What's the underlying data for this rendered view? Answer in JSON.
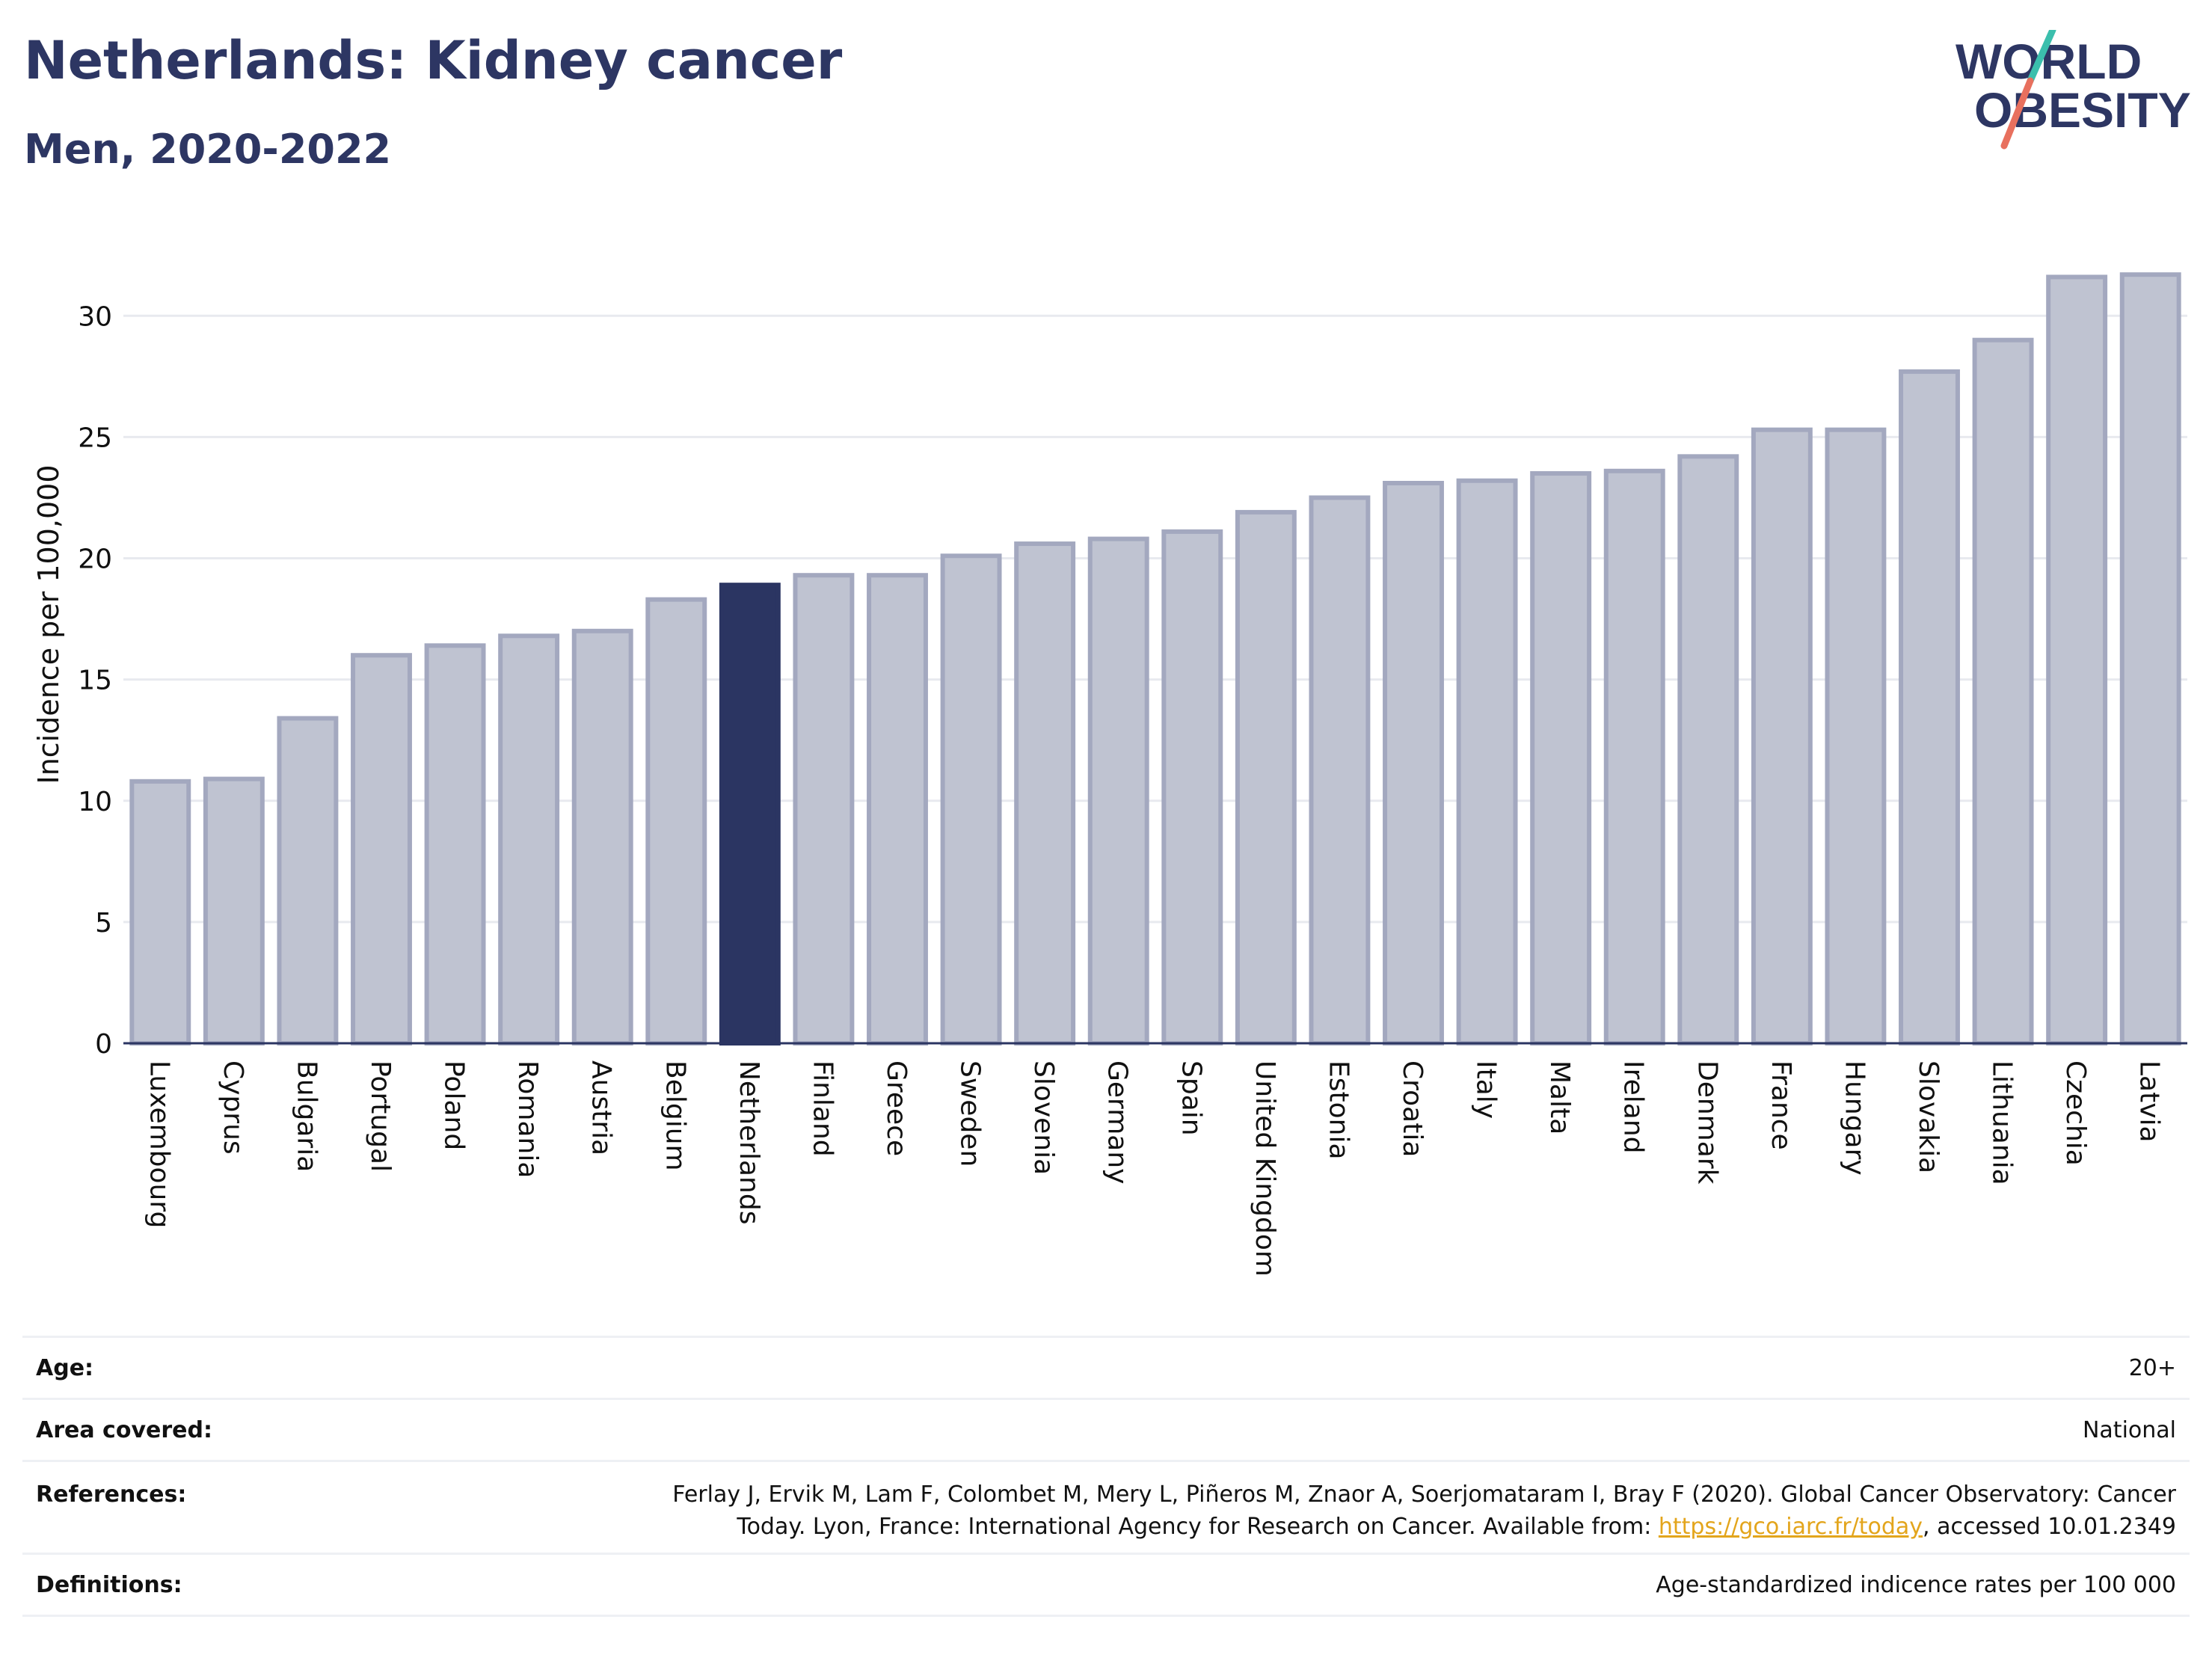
{
  "header": {
    "title": "Netherlands: Kidney cancer",
    "subtitle": "Men, 2020-2022"
  },
  "logo": {
    "line1": "WORLD",
    "line2": "OBESITY"
  },
  "chart_data": {
    "type": "bar",
    "title": "Netherlands: Kidney cancer",
    "subtitle": "Men, 2020-2022",
    "xlabel": "",
    "ylabel": "Incidence per 100,000",
    "ylim": [
      0,
      33
    ],
    "yticks": [
      0,
      5,
      10,
      15,
      20,
      25,
      30
    ],
    "grid": true,
    "highlight": "Netherlands",
    "colors": {
      "bar": "#bfc3d1",
      "bar_border": "#a3a8bf",
      "highlight": "#2b3562",
      "grid": "#e8eaef",
      "axis": "#2b3562"
    },
    "categories": [
      "Luxembourg",
      "Cyprus",
      "Bulgaria",
      "Portugal",
      "Poland",
      "Romania",
      "Austria",
      "Belgium",
      "Netherlands",
      "Finland",
      "Greece",
      "Sweden",
      "Slovenia",
      "Germany",
      "Spain",
      "United Kingdom",
      "Estonia",
      "Croatia",
      "Italy",
      "Malta",
      "Ireland",
      "Denmark",
      "France",
      "Hungary",
      "Slovakia",
      "Lithuania",
      "Czechia",
      "Latvia"
    ],
    "values": [
      10.8,
      10.9,
      13.4,
      16.0,
      16.4,
      16.8,
      17.0,
      18.3,
      18.9,
      19.3,
      19.3,
      20.1,
      20.6,
      20.8,
      21.1,
      21.9,
      22.5,
      23.1,
      23.2,
      23.5,
      23.6,
      24.2,
      25.3,
      25.3,
      27.7,
      29.0,
      31.6,
      31.7
    ]
  },
  "info": {
    "age_label": "Age:",
    "age_value": "20+",
    "area_label": "Area covered:",
    "area_value": "National",
    "references_label": "References:",
    "references_line1": "Ferlay J, Ervik M, Lam F, Colombet M, Mery L, Piñeros M, Znaor A, Soerjomataram I, Bray F (2020). Global Cancer Observatory: Cancer",
    "references_line2_pre": "Today. Lyon, France: International Agency for Research on Cancer. Available from: ",
    "references_link": "https://gco.iarc.fr/today",
    "references_line2_post": ", accessed 10.01.2349",
    "definitions_label": "Definitions:",
    "definitions_value": "Age-standardized indicence rates per 100 000"
  }
}
